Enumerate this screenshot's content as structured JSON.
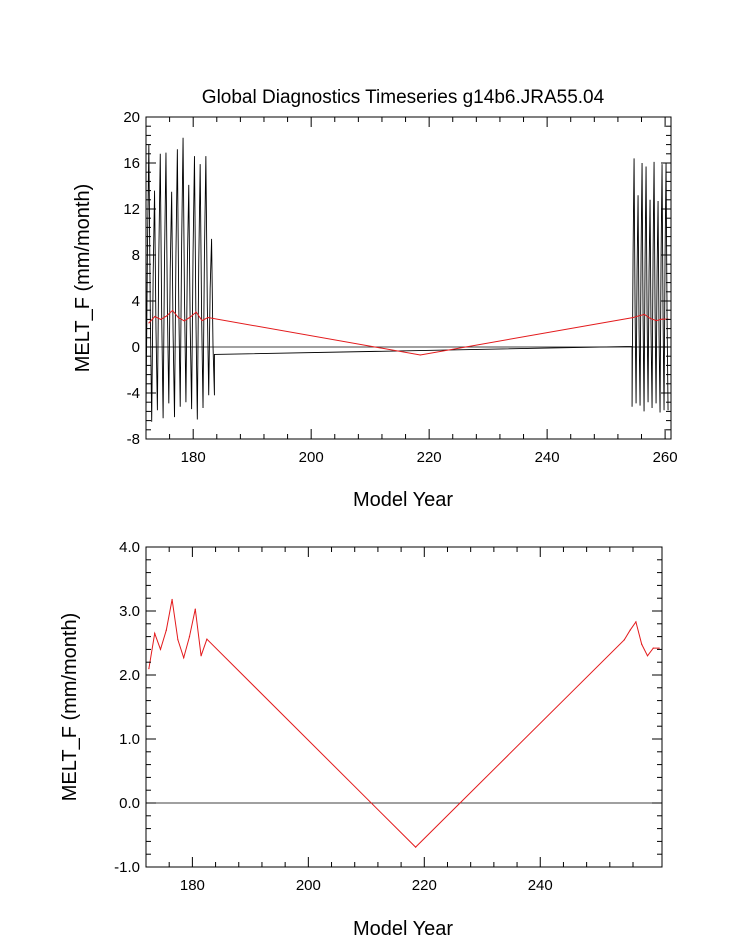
{
  "chart_data": [
    {
      "type": "line",
      "title": "Global Diagnostics Timeseries g14b6.JRA55.04",
      "xlabel": "Model Year",
      "ylabel": "MELT_F (mm/month)",
      "xlim": [
        172,
        261
      ],
      "ylim": [
        -8,
        20
      ],
      "xticks": [
        180,
        200,
        220,
        240,
        260
      ],
      "yticks": [
        -8,
        -4,
        0,
        4,
        8,
        12,
        16,
        20
      ],
      "ytick_labels": [
        "-8",
        "-4",
        "0",
        "4",
        "8",
        "12",
        "16",
        "20"
      ],
      "zero_line": true,
      "colors": {
        "monthly": "#000000",
        "annual": "#e31a1c",
        "zero": "#000000"
      },
      "series": [
        {
          "key": "monthly",
          "monthly_peaks": [
            17.6,
            13.6,
            16.8,
            16.9,
            13.5,
            17.2,
            18.2,
            14.1,
            16.6,
            15.9,
            16.6,
            9.4
          ],
          "monthly_troughs": [
            -5.8,
            -6.5,
            -5.5,
            -6.2,
            -4.9,
            -6.1,
            -5.2,
            -4.8,
            -5.4,
            -6.3,
            -5.3,
            -4.2
          ],
          "monthly_x_start": 172.0,
          "monthly_x_end": 183.6,
          "linear_segment": {
            "x": [
              183.6,
              254.4
            ],
            "y": [
              -0.65,
              0.05
            ]
          },
          "monthly_peaks_end": [
            16.4,
            13.2,
            16.0,
            15.7,
            12.8,
            16.1,
            12.7,
            15.9,
            16.0
          ],
          "monthly_troughs_end": [
            -5.2,
            -4.9,
            -5.1,
            -5.6,
            -4.8,
            -5.3,
            -4.9,
            -5.7,
            -5.5
          ],
          "monthly_x_start_end": 254.4,
          "monthly_x_end_end": 260.5
        },
        {
          "key": "annual",
          "x": [
            172.5,
            173.5,
            174.5,
            175.5,
            176.5,
            177.5,
            178.5,
            179.5,
            180.5,
            181.5,
            182.5,
            218.5,
            254.5,
            255.5,
            256.5,
            257.5,
            258.5,
            259.5,
            260.5
          ],
          "y": [
            2.1,
            2.65,
            2.4,
            2.7,
            3.18,
            2.55,
            2.27,
            2.6,
            3.03,
            2.3,
            2.56,
            -0.69,
            2.55,
            2.7,
            2.83,
            2.48,
            2.3,
            2.42,
            2.42
          ]
        }
      ]
    },
    {
      "type": "line",
      "title": "",
      "xlabel": "Model Year",
      "ylabel": "MELT_F (mm/month)",
      "xlim": [
        172,
        261
      ],
      "ylim": [
        -1.0,
        4.0
      ],
      "xticks": [
        180,
        200,
        220,
        240
      ],
      "yticks": [
        -1.0,
        0.0,
        1.0,
        2.0,
        3.0,
        4.0
      ],
      "ytick_labels": [
        "-1.0",
        "0.0",
        "1.0",
        "2.0",
        "3.0",
        "4.0"
      ],
      "zero_line": true,
      "colors": {
        "annual": "#e31a1c",
        "zero": "#000000"
      },
      "series": [
        {
          "key": "annual",
          "x": [
            172.5,
            173.5,
            174.5,
            175.5,
            176.5,
            177.5,
            178.5,
            179.5,
            180.5,
            181.5,
            182.5,
            218.5,
            254.5,
            255.5,
            256.5,
            257.5,
            258.5,
            259.5,
            260.5
          ],
          "y": [
            2.1,
            2.65,
            2.4,
            2.7,
            3.18,
            2.55,
            2.27,
            2.6,
            3.03,
            2.3,
            2.56,
            -0.69,
            2.55,
            2.7,
            2.83,
            2.48,
            2.3,
            2.42,
            2.42
          ]
        }
      ]
    }
  ]
}
